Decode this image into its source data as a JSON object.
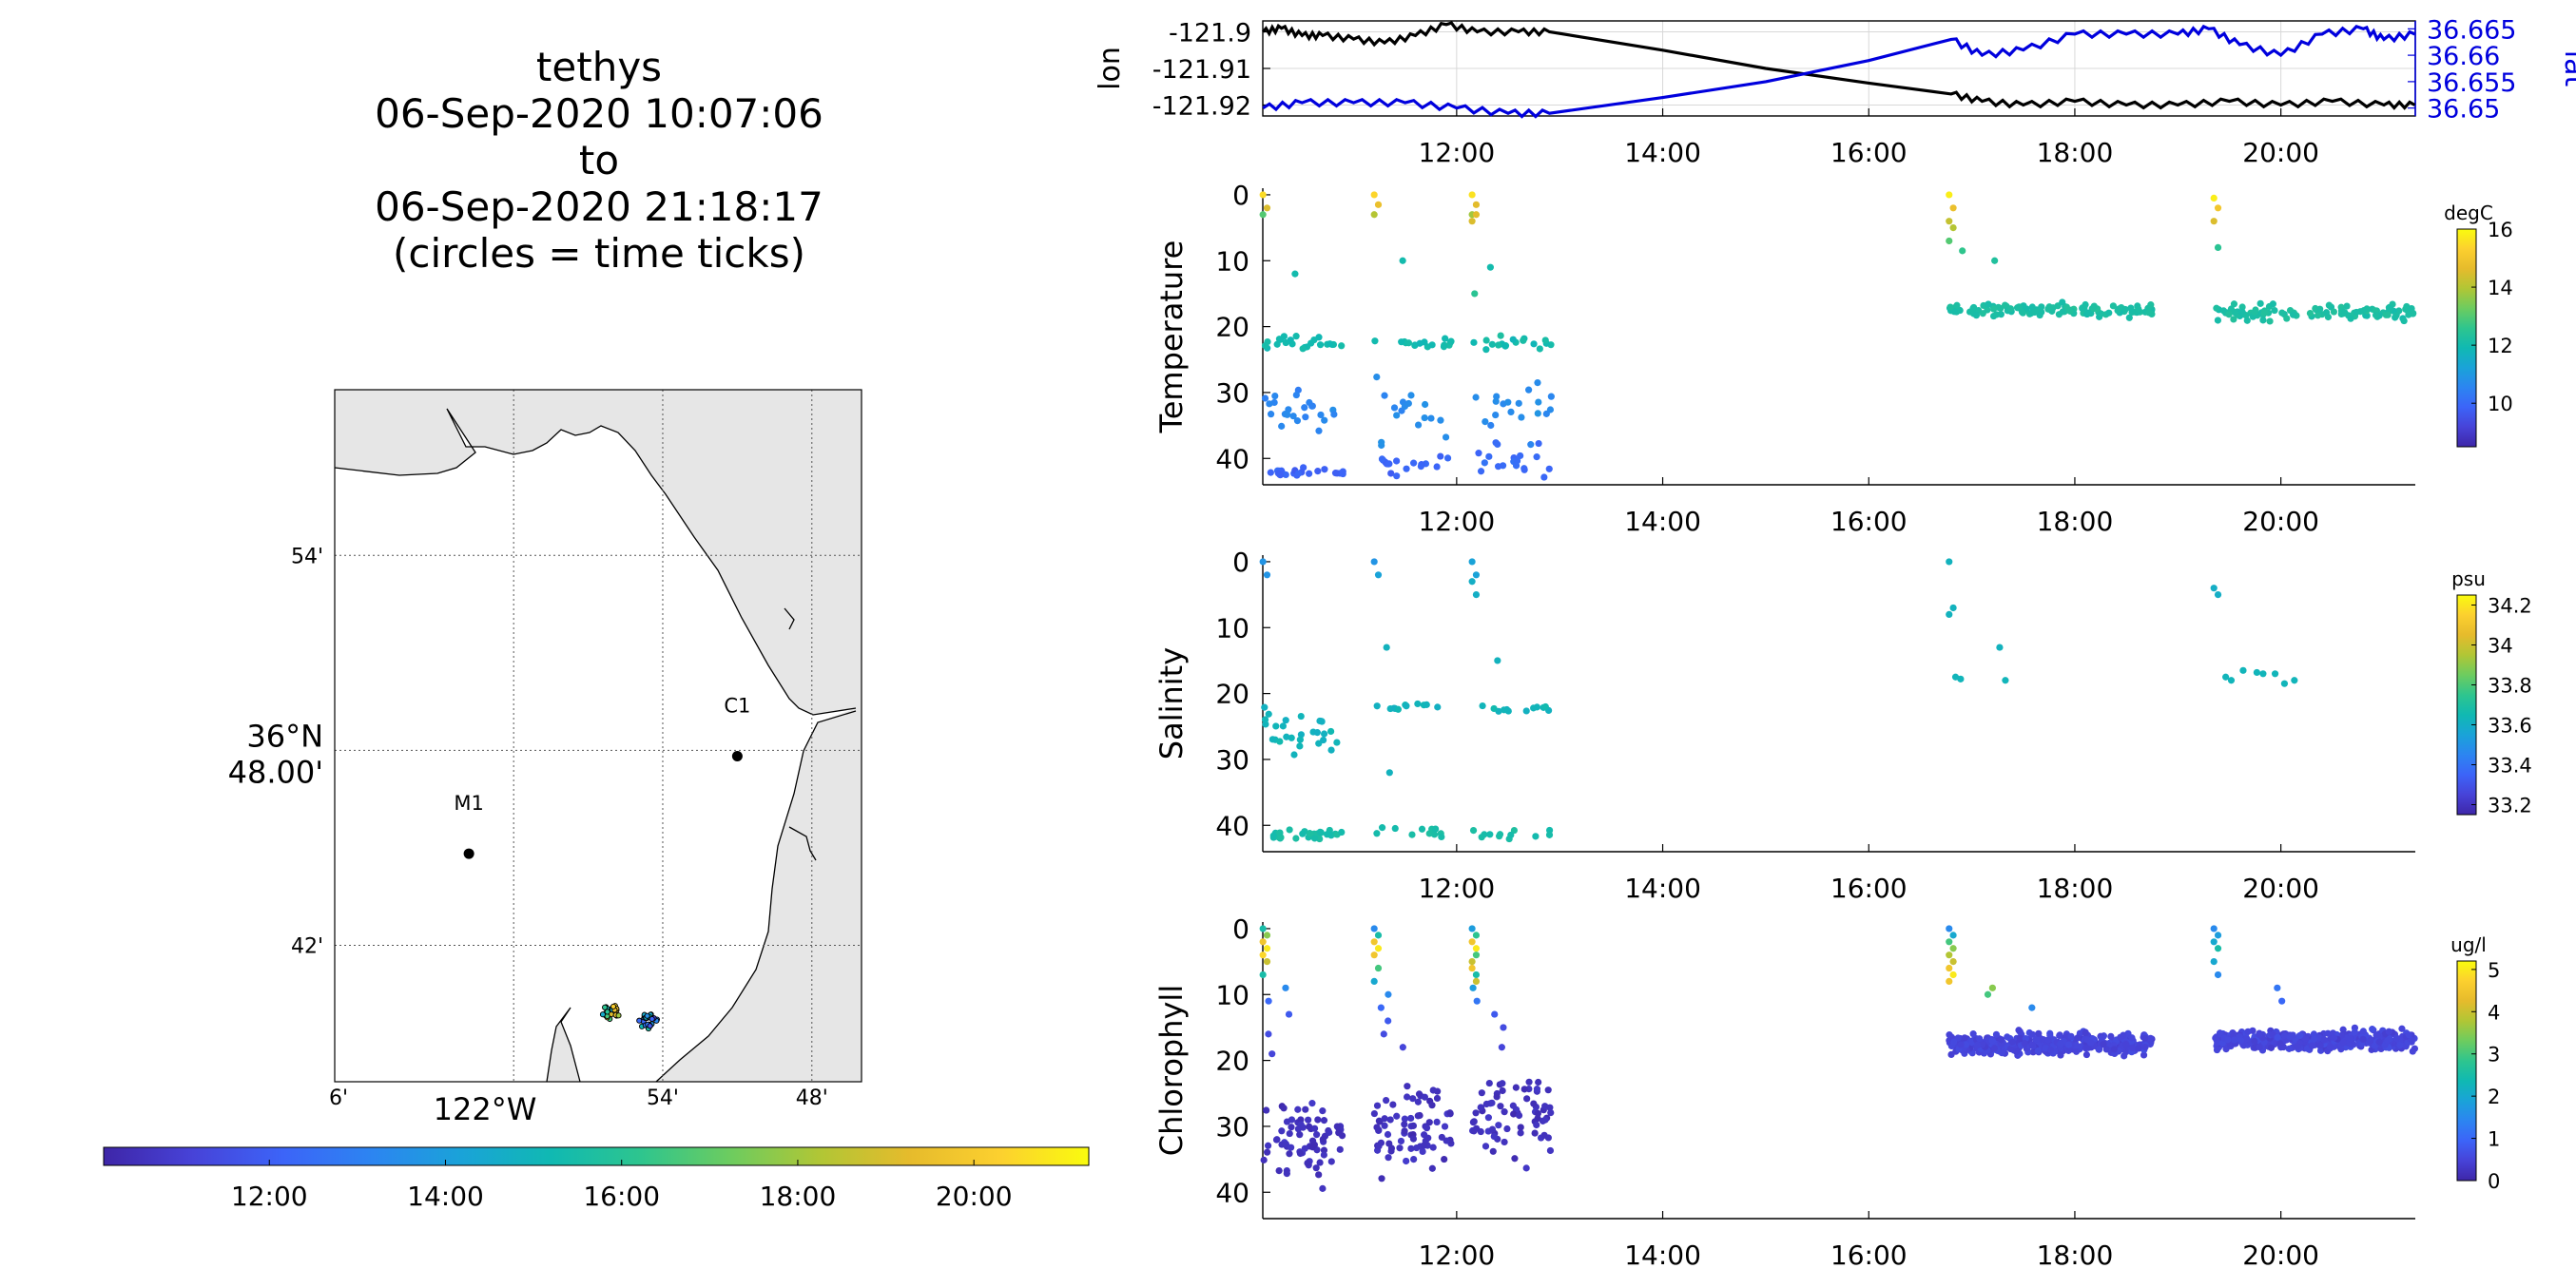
{
  "title_lines": [
    "tethys",
    "06-Sep-2020 10:07:06",
    "to",
    "06-Sep-2020 21:18:17",
    "(circles = time ticks)"
  ],
  "colors": {
    "lon_line": "#000000",
    "lat_line": "#0000dd",
    "land": "#e6e6e6",
    "coast": "#000000",
    "parula": [
      "#3e26a8",
      "#4743d8",
      "#3c64f8",
      "#2c85f1",
      "#1aa3d8",
      "#10b9b2",
      "#2ec58e",
      "#6dcc5f",
      "#b1c635",
      "#e6bb2c",
      "#fcd02f",
      "#f9fb0e"
    ]
  },
  "map": {
    "lat_ticks": [
      "54'",
      "36°N 48.00'",
      "42'"
    ],
    "lon_ticks": [
      "6'",
      "122°W",
      "54'",
      "48'"
    ],
    "stations": [
      {
        "name": "M1",
        "lon": -122.03,
        "lat": 36.747
      },
      {
        "name": "C1",
        "lon": -121.85,
        "lat": 36.797
      }
    ],
    "track_clusters": [
      {
        "lon": -121.935,
        "lat": 36.666
      },
      {
        "lon": -121.91,
        "lat": 36.661
      }
    ],
    "time_colorbar": {
      "ticks": [
        "12:00",
        "14:00",
        "16:00",
        "18:00",
        "20:00"
      ],
      "tick_hours": [
        12,
        14,
        16,
        18,
        20
      ],
      "range_hours": [
        10.1185,
        21.3047
      ]
    }
  },
  "chart_data": [
    {
      "type": "line",
      "panel": "position",
      "xlabel": "",
      "ylabel": "lon",
      "ylabel_right": "lat",
      "x_range_hours": [
        10.1185,
        21.3047
      ],
      "x_ticks": [
        "12:00",
        "14:00",
        "16:00",
        "18:00",
        "20:00"
      ],
      "x_tick_hours": [
        12,
        14,
        16,
        18,
        20
      ],
      "y_left_ticks": [
        "-121.9",
        "-121.91",
        "-121.92"
      ],
      "y_left_tick_values": [
        -121.9,
        -121.91,
        -121.92
      ],
      "y_left_range": [
        -121.923,
        -121.897
      ],
      "y_right_ticks": [
        "36.665",
        "36.66",
        "36.655",
        "36.65"
      ],
      "y_right_tick_values": [
        36.665,
        36.66,
        36.655,
        36.65
      ],
      "y_right_range": [
        36.6485,
        36.6665
      ],
      "grid": true,
      "series": [
        {
          "name": "lon",
          "axis": "left",
          "x": [
            10.12,
            10.3,
            10.5,
            10.7,
            11.0,
            11.3,
            11.6,
            11.9,
            12.2,
            12.6,
            12.9,
            14.0,
            15.0,
            16.0,
            16.8,
            17.1,
            17.5,
            18.0,
            18.5,
            19.0,
            19.5,
            20.0,
            20.5,
            21.0,
            21.3
          ],
          "y": [
            -121.9,
            -121.899,
            -121.901,
            -121.901,
            -121.902,
            -121.903,
            -121.901,
            -121.898,
            -121.9,
            -121.9,
            -121.9,
            -121.905,
            -121.91,
            -121.914,
            -121.917,
            -121.919,
            -121.92,
            -121.919,
            -121.92,
            -121.92,
            -121.919,
            -121.92,
            -121.919,
            -121.92,
            -121.92
          ]
        },
        {
          "name": "lat",
          "axis": "right",
          "x": [
            10.12,
            10.5,
            11.0,
            11.5,
            12.0,
            12.5,
            12.9,
            14.0,
            15.0,
            16.0,
            16.8,
            17.1,
            17.5,
            18.0,
            18.5,
            19.0,
            19.3,
            19.6,
            20.0,
            20.4,
            20.8,
            21.0,
            21.3
          ],
          "y": [
            36.65,
            36.651,
            36.651,
            36.651,
            36.65,
            36.649,
            36.649,
            36.652,
            36.655,
            36.659,
            36.663,
            36.66,
            36.661,
            36.664,
            36.664,
            36.664,
            36.665,
            36.662,
            36.66,
            36.664,
            36.665,
            36.663,
            36.664
          ]
        }
      ]
    },
    {
      "type": "scatter",
      "panel": "Temperature",
      "ylabel": "Temperature",
      "colorbar_label": "degC",
      "colorbar_ticks": [
        "16",
        "14",
        "12",
        "10"
      ],
      "colorbar_tick_values": [
        16,
        14,
        12,
        10
      ],
      "c_range": [
        8.5,
        16
      ],
      "y_range": [
        44,
        -1
      ],
      "y_ticks": [
        "0",
        "10",
        "20",
        "30",
        "40"
      ],
      "y_tick_values": [
        0,
        10,
        20,
        30,
        40
      ],
      "x_ticks": [
        "12:00",
        "14:00",
        "16:00",
        "18:00",
        "20:00"
      ],
      "x_tick_hours": [
        12,
        14,
        16,
        18,
        20
      ],
      "x_range_hours": [
        10.1185,
        21.3047
      ],
      "profiles": [
        {
          "t_start": 10.12,
          "t_end": 10.9,
          "shallow": [
            [
              0,
              15.5
            ],
            [
              2,
              14.5
            ],
            [
              3,
              13
            ],
            [
              12,
              12
            ]
          ],
          "layers": [
            [
              22.5,
              1.0,
              12
            ],
            [
              33,
              3.0,
              10.6
            ],
            [
              42,
              0.6,
              9.8
            ]
          ],
          "count": 68
        },
        {
          "t_start": 11.2,
          "t_end": 11.95,
          "shallow": [
            [
              0,
              15.4
            ],
            [
              1.5,
              14.8
            ],
            [
              3,
              14
            ],
            [
              10,
              12
            ]
          ],
          "layers": [
            [
              22.5,
              0.8,
              12
            ],
            [
              33,
              4.0,
              10.7
            ],
            [
              41,
              1.2,
              9.9
            ]
          ],
          "count": 52
        },
        {
          "t_start": 12.15,
          "t_end": 12.92,
          "shallow": [
            [
              0,
              15.6
            ],
            [
              1.5,
              14.6
            ],
            [
              3,
              13.8
            ],
            [
              11,
              12
            ],
            [
              4,
              14.5
            ],
            [
              3,
              14.6
            ],
            [
              15,
              12.5
            ]
          ],
          "layers": [
            [
              22.5,
              0.8,
              12
            ],
            [
              32,
              4.0,
              10.7
            ],
            [
              40,
              2.5,
              10
            ]
          ],
          "count": 58
        },
        {
          "t_start": 16.78,
          "t_end": 18.75,
          "shallow": [
            [
              0,
              15.8
            ],
            [
              2,
              14.8
            ],
            [
              4,
              14.2
            ],
            [
              5,
              14
            ],
            [
              7,
              13
            ],
            [
              8.5,
              12.6
            ],
            [
              10,
              12.3
            ]
          ],
          "layers": [
            [
              17.5,
              0.9,
              12.2
            ]
          ],
          "count": 110
        },
        {
          "t_start": 19.35,
          "t_end": 21.3,
          "shallow": [
            [
              0.5,
              15.8
            ],
            [
              2,
              15
            ],
            [
              4,
              14.5
            ],
            [
              8,
              12.5
            ]
          ],
          "layers": [
            [
              17.8,
              1.0,
              12.2
            ]
          ],
          "count": 110
        }
      ]
    },
    {
      "type": "scatter",
      "panel": "Salinity",
      "ylabel": "Salinity",
      "colorbar_label": "psu",
      "colorbar_ticks": [
        "34.2",
        "34",
        "33.8",
        "33.6",
        "33.4",
        "33.2"
      ],
      "colorbar_tick_values": [
        34.2,
        34.0,
        33.8,
        33.6,
        33.4,
        33.2
      ],
      "c_range": [
        33.15,
        34.25
      ],
      "y_range": [
        44,
        -1
      ],
      "y_ticks": [
        "0",
        "10",
        "20",
        "30",
        "40"
      ],
      "y_tick_values": [
        0,
        10,
        20,
        30,
        40
      ],
      "x_ticks": [
        "12:00",
        "14:00",
        "16:00",
        "18:00",
        "20:00"
      ],
      "x_tick_hours": [
        12,
        14,
        16,
        18,
        20
      ],
      "x_range_hours": [
        10.1185,
        21.3047
      ],
      "profiles": [
        {
          "t_start": 10.12,
          "t_end": 10.9,
          "shallow": [
            [
              0,
              33.5
            ],
            [
              2,
              33.5
            ]
          ],
          "layers": [
            [
              26.5,
              3.0,
              33.63
            ],
            [
              41.5,
              0.6,
              33.68
            ]
          ],
          "count": 55
        },
        {
          "t_start": 11.2,
          "t_end": 11.95,
          "shallow": [
            [
              0,
              33.5
            ],
            [
              2,
              33.55
            ],
            [
              32,
              33.62
            ],
            [
              13,
              33.62
            ]
          ],
          "layers": [
            [
              22,
              0.5,
              33.63
            ],
            [
              41,
              1.0,
              33.68
            ]
          ],
          "count": 22
        },
        {
          "t_start": 12.15,
          "t_end": 12.92,
          "shallow": [
            [
              0,
              33.55
            ],
            [
              2,
              33.55
            ],
            [
              3,
              33.6
            ],
            [
              5,
              33.6
            ],
            [
              15,
              33.62
            ]
          ],
          "layers": [
            [
              22.3,
              0.5,
              33.63
            ],
            [
              41.5,
              0.7,
              33.68
            ]
          ],
          "count": 24
        },
        {
          "t_start": 16.78,
          "t_end": 18.75,
          "shallow": [
            [
              0,
              33.62
            ],
            [
              7,
              33.62
            ],
            [
              8,
              33.62
            ],
            [
              13,
              33.62
            ],
            [
              17.5,
              33.63
            ],
            [
              18,
              33.63
            ],
            [
              17.8,
              33.63
            ]
          ],
          "layers": [],
          "count": 0
        },
        {
          "t_start": 19.35,
          "t_end": 21.3,
          "shallow": [
            [
              4,
              33.6
            ],
            [
              5,
              33.6
            ],
            [
              16.5,
              33.63
            ],
            [
              16.8,
              33.63
            ],
            [
              17,
              33.63
            ],
            [
              18,
              33.63
            ],
            [
              17.5,
              33.63
            ],
            [
              18.5,
              33.63
            ],
            [
              17,
              33.63
            ],
            [
              18,
              33.63
            ]
          ],
          "layers": [],
          "count": 0
        }
      ]
    },
    {
      "type": "scatter",
      "panel": "Chlorophyll",
      "ylabel": "Chlorophyll",
      "colorbar_label": "ug/l",
      "colorbar_ticks": [
        "5",
        "4",
        "3",
        "2",
        "1",
        "0"
      ],
      "colorbar_tick_values": [
        5,
        4,
        3,
        2,
        1,
        0
      ],
      "c_range": [
        0,
        5.2
      ],
      "y_range": [
        44,
        -1
      ],
      "y_ticks": [
        "0",
        "10",
        "20",
        "30",
        "40"
      ],
      "y_tick_values": [
        0,
        10,
        20,
        30,
        40
      ],
      "x_ticks": [
        "12:00",
        "14:00",
        "16:00",
        "18:00",
        "20:00"
      ],
      "x_tick_hours": [
        12,
        14,
        16,
        18,
        20
      ],
      "x_range_hours": [
        10.1185,
        21.3047
      ],
      "profiles": [
        {
          "t_start": 10.12,
          "t_end": 10.9,
          "shallow": [
            [
              0,
              2.5
            ],
            [
              1,
              3.5
            ],
            [
              2,
              4.5
            ],
            [
              3,
              5
            ],
            [
              4,
              4.8
            ],
            [
              5,
              4
            ],
            [
              7,
              2.5
            ],
            [
              9,
              1.5
            ],
            [
              11,
              1.0
            ],
            [
              13,
              0.8
            ],
            [
              16,
              0.6
            ],
            [
              19,
              0.5
            ]
          ],
          "layers": [
            [
              31,
              5.5,
              0.2
            ]
          ],
          "count": 70
        },
        {
          "t_start": 11.2,
          "t_end": 11.95,
          "shallow": [
            [
              0,
              1.5
            ],
            [
              1,
              2.5
            ],
            [
              2,
              4.5
            ],
            [
              3,
              5
            ],
            [
              4,
              4.5
            ],
            [
              6,
              3
            ],
            [
              8,
              2
            ],
            [
              10,
              1.5
            ],
            [
              12,
              1
            ],
            [
              14,
              0.8
            ],
            [
              16,
              0.6
            ],
            [
              18,
              0.5
            ]
          ],
          "layers": [
            [
              30,
              6.0,
              0.2
            ]
          ],
          "count": 75
        },
        {
          "t_start": 12.15,
          "t_end": 12.92,
          "shallow": [
            [
              0,
              1.8
            ],
            [
              1,
              2.8
            ],
            [
              2,
              4.5
            ],
            [
              3,
              5
            ],
            [
              5,
              4
            ],
            [
              7,
              2.5
            ],
            [
              9,
              1.8
            ],
            [
              11,
              1.2
            ],
            [
              13,
              0.8
            ],
            [
              15,
              0.6
            ],
            [
              18,
              0.5
            ],
            [
              4,
              3
            ],
            [
              6,
              4.5
            ],
            [
              8,
              4
            ]
          ],
          "layers": [
            [
              29,
              5.5,
              0.2
            ]
          ],
          "count": 70
        },
        {
          "t_start": 16.78,
          "t_end": 18.75,
          "shallow": [
            [
              0,
              1.5
            ],
            [
              1,
              2
            ],
            [
              2,
              3
            ],
            [
              3,
              3.5
            ],
            [
              4,
              3.8
            ],
            [
              5,
              4
            ],
            [
              6,
              4.5
            ],
            [
              7,
              5
            ],
            [
              8,
              4.5
            ],
            [
              9,
              3.5
            ],
            [
              10,
              3
            ],
            [
              12,
              1.5
            ]
          ],
          "layers": [
            [
              17.5,
              1.3,
              0.5
            ]
          ],
          "count": 420
        },
        {
          "t_start": 19.35,
          "t_end": 21.3,
          "shallow": [
            [
              0,
              1.5
            ],
            [
              1,
              1.8
            ],
            [
              2,
              2
            ],
            [
              3,
              2.5
            ],
            [
              5,
              2
            ],
            [
              7,
              1.5
            ],
            [
              9,
              1.2
            ],
            [
              11,
              1
            ]
          ],
          "layers": [
            [
              17,
              1.2,
              0.5
            ]
          ],
          "count": 420
        }
      ]
    }
  ]
}
